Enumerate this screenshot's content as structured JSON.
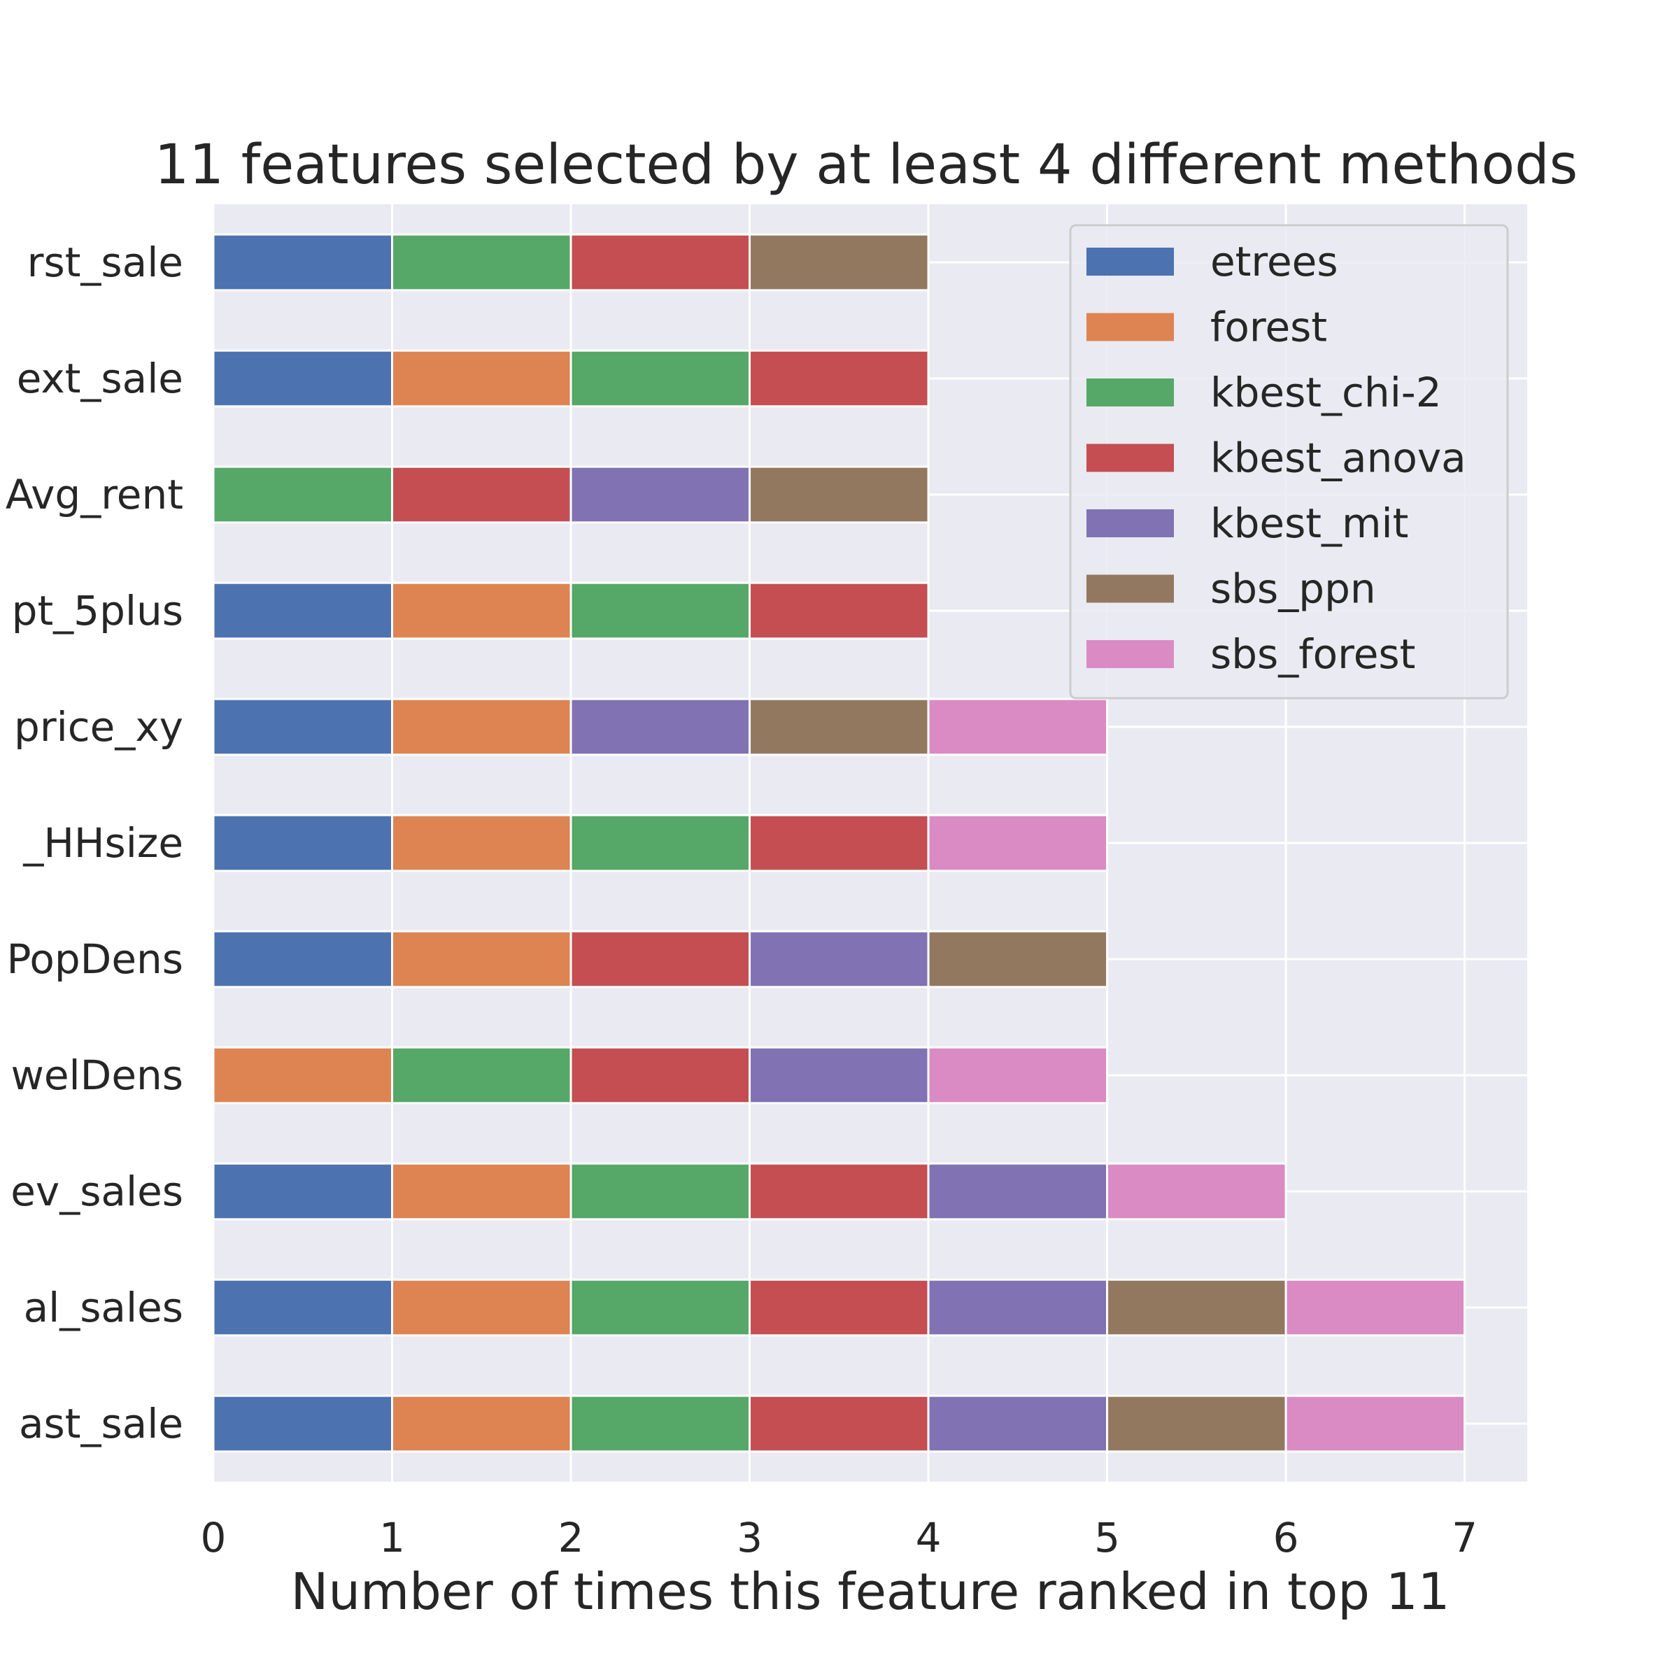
{
  "chart_data": {
    "type": "bar",
    "orientation": "horizontal",
    "stacked": true,
    "title": "11 features selected by at least 4 different methods",
    "xlabel": "Number of times this feature ranked in top 11",
    "ylabel": "",
    "xlim": [
      0,
      7.35
    ],
    "xticks": [
      "0",
      "1",
      "2",
      "3",
      "4",
      "5",
      "6",
      "7"
    ],
    "grid": true,
    "legend_position": "top-right",
    "categories": [
      "rst_sale",
      "ext_sale",
      "Avg_rent",
      "pt_5plus",
      "price_xy",
      "_HHsize",
      "PopDens",
      "welDens",
      "ev_sales",
      "al_sales",
      "ast_sale"
    ],
    "series": [
      {
        "name": "etrees",
        "color": "#4c72b0",
        "values": [
          1,
          1,
          0,
          1,
          1,
          1,
          1,
          0,
          1,
          1,
          1
        ]
      },
      {
        "name": "forest",
        "color": "#dd8452",
        "values": [
          0,
          1,
          0,
          1,
          1,
          1,
          1,
          1,
          1,
          1,
          1
        ]
      },
      {
        "name": "kbest_chi-2",
        "color": "#55a868",
        "values": [
          1,
          1,
          1,
          1,
          0,
          1,
          0,
          1,
          1,
          1,
          1
        ]
      },
      {
        "name": "kbest_anova",
        "color": "#c44e52",
        "values": [
          1,
          1,
          1,
          1,
          0,
          1,
          1,
          1,
          1,
          1,
          1
        ]
      },
      {
        "name": "kbest_mit",
        "color": "#8172b3",
        "values": [
          0,
          0,
          1,
          0,
          1,
          0,
          1,
          1,
          1,
          1,
          1
        ]
      },
      {
        "name": "sbs_ppn",
        "color": "#937860",
        "values": [
          1,
          0,
          1,
          0,
          1,
          0,
          1,
          0,
          0,
          1,
          1
        ]
      },
      {
        "name": "sbs_forest",
        "color": "#da8bc3",
        "values": [
          0,
          0,
          0,
          0,
          1,
          1,
          0,
          1,
          1,
          1,
          1
        ]
      }
    ],
    "background_color": "#eaeaf2",
    "grid_color": "#ffffff"
  }
}
